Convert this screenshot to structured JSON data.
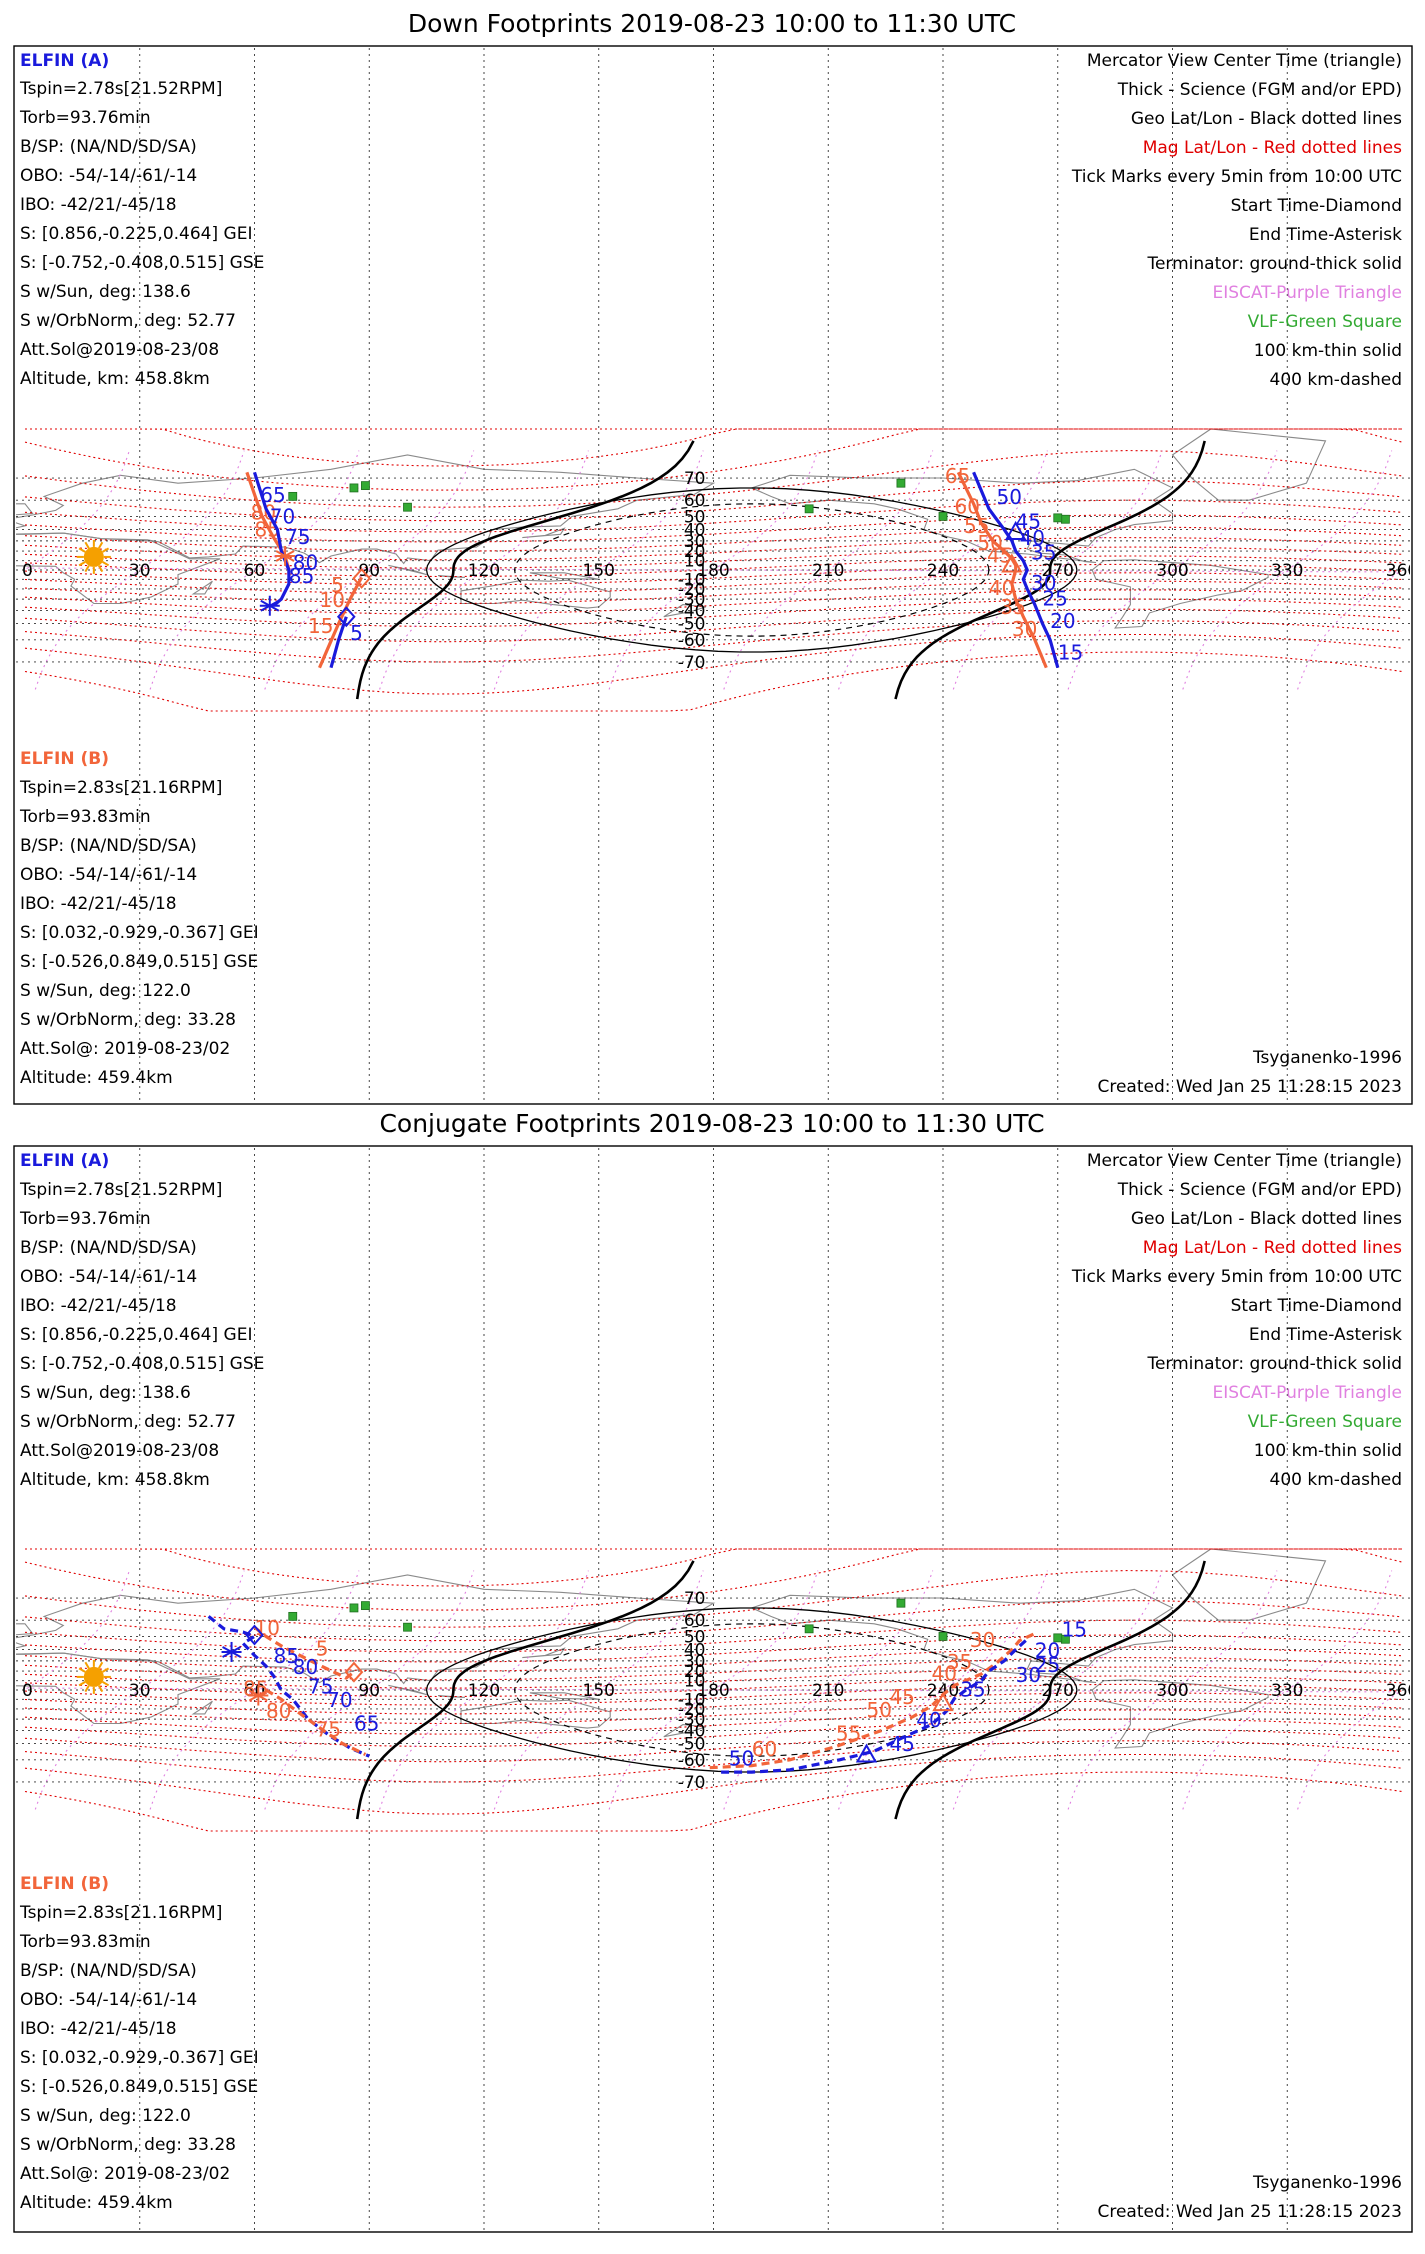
{
  "colors": {
    "elfin_a": "#1a1adc",
    "elfin_b": "#f2653a",
    "mag": "#e00000",
    "geo": "#000000",
    "eiscat": "#e080e0",
    "vlf": "#33aa33",
    "sun": "#f5a000"
  },
  "panels": [
    {
      "title": "Down Footprints 2019-08-23 10:00 to 11:30 UTC",
      "elfin_a": {
        "header": "ELFIN (A)",
        "lines": [
          "Tspin=2.78s[21.52RPM]",
          "Torb=93.76min",
          "B/SP: (NA/ND/SD/SA)",
          "OBO: -54/-14/-61/-14",
          "IBO: -42/21/-45/18",
          "S: [0.856,-0.225,0.464] GEI",
          "S: [-0.752,-0.408,0.515] GSE",
          "S w/Sun, deg: 138.6",
          "S w/OrbNorm, deg: 52.77",
          "Att.Sol@2019-08-23/08",
          "Altitude, km: 458.8km"
        ]
      },
      "elfin_b": {
        "header": "ELFIN (B)",
        "lines": [
          "Tspin=2.83s[21.16RPM]",
          "Torb=93.83min",
          "B/SP: (NA/ND/SD/SA)",
          "OBO: -54/-14/-61/-14",
          "IBO: -42/21/-45/18",
          "S: [0.032,-0.929,-0.367] GEI",
          "S: [-0.526,0.849,0.515] GSE",
          "S w/Sun, deg: 122.0",
          "S w/OrbNorm, deg: 33.28",
          "Att.Sol@: 2019-08-23/02",
          "Altitude: 459.4km"
        ]
      },
      "legend": [
        "Mercator View Center Time (triangle)",
        "Thick - Science (FGM and/or EPD)",
        "Geo Lat/Lon - Black dotted lines",
        "Mag Lat/Lon - Red dotted lines",
        "Tick Marks every 5min from 10:00 UTC",
        "Start Time-Diamond",
        "End Time-Asterisk",
        "Terminator: ground-thick solid",
        "EISCAT-Purple Triangle",
        "VLF-Green Square",
        "100 km-thin solid",
        "400 km-dashed"
      ],
      "model": "Tsyganenko-1996",
      "created": "Created: Wed Jan 25 11:28:15 2023"
    },
    {
      "title": "Conjugate Footprints 2019-08-23 10:00 to 11:30 UTC",
      "elfin_a": {
        "header": "ELFIN (A)",
        "lines": [
          "Tspin=2.78s[21.52RPM]",
          "Torb=93.76min",
          "B/SP: (NA/ND/SD/SA)",
          "OBO: -54/-14/-61/-14",
          "IBO: -42/21/-45/18",
          "S: [0.856,-0.225,0.464] GEI",
          "S: [-0.752,-0.408,0.515] GSE",
          "S w/Sun, deg: 138.6",
          "S w/OrbNorm, deg: 52.77",
          "Att.Sol@2019-08-23/08",
          "Altitude, km: 458.8km"
        ]
      },
      "elfin_b": {
        "header": "ELFIN (B)",
        "lines": [
          "Tspin=2.83s[21.16RPM]",
          "Torb=93.83min",
          "B/SP: (NA/ND/SD/SA)",
          "OBO: -54/-14/-61/-14",
          "IBO: -42/21/-45/18",
          "S: [0.032,-0.929,-0.367] GEI",
          "S: [-0.526,0.849,0.515] GSE",
          "S w/Sun, deg: 122.0",
          "S w/OrbNorm, deg: 33.28",
          "Att.Sol@: 2019-08-23/02",
          "Altitude: 459.4km"
        ]
      },
      "legend": [
        "Mercator View Center Time (triangle)",
        "Thick - Science (FGM and/or EPD)",
        "Geo Lat/Lon - Black dotted lines",
        "Mag Lat/Lon - Red dotted lines",
        "Tick Marks every 5min from 10:00 UTC",
        "Start Time-Diamond",
        "End Time-Asterisk",
        "Terminator: ground-thick solid",
        "EISCAT-Purple Triangle",
        "VLF-Green Square",
        "100 km-thin solid",
        "400 km-dashed"
      ],
      "model": "Tsyganenko-1996",
      "created": "Created: Wed Jan 25 11:28:15 2023"
    }
  ],
  "axes": {
    "lon_ticks": [
      "0",
      "30",
      "60",
      "90",
      "120",
      "150",
      "180",
      "210",
      "240",
      "270",
      "300",
      "330",
      "360"
    ],
    "lat_ticks": [
      "70",
      "60",
      "50",
      "40",
      "30",
      "20",
      "10",
      "-10",
      "-20",
      "-30",
      "-40",
      "-50",
      "-60",
      "-70"
    ]
  },
  "tracks": {
    "down": {
      "a1": {
        "pts": [
          [
            60,
            72
          ],
          [
            63,
            55
          ],
          [
            66,
            40
          ],
          [
            67,
            20
          ],
          [
            68,
            10
          ],
          [
            69,
            0
          ],
          [
            69,
            -15
          ],
          [
            67,
            -30
          ],
          [
            65,
            -36
          ]
        ],
        "labels": [
          {
            "t": "65",
            "lon": 61.5,
            "lat": 59
          },
          {
            "t": "70",
            "lon": 64,
            "lat": 45
          },
          {
            "t": "75",
            "lon": 68,
            "lat": 27
          },
          {
            "t": "80",
            "lon": 70,
            "lat": 0.5
          },
          {
            "t": "85",
            "lon": 69,
            "lat": -14
          }
        ]
      },
      "b1": {
        "pts": [
          [
            58,
            72
          ],
          [
            62,
            50
          ],
          [
            65,
            33
          ],
          [
            68,
            15
          ],
          [
            69,
            0
          ],
          [
            69,
            -5
          ]
        ],
        "labels": [
          {
            "t": "80",
            "lon": 59,
            "lat": 48
          },
          {
            "t": "85",
            "lon": 60,
            "lat": 34
          }
        ]
      },
      "b2": {
        "pts": [
          [
            88,
            -8
          ],
          [
            85,
            -30
          ],
          [
            82,
            -50
          ],
          [
            79,
            -65
          ],
          [
            77,
            -72
          ]
        ],
        "labels": [
          {
            "t": "5",
            "lon": 80,
            "lat": -23
          },
          {
            "t": "10",
            "lon": 77,
            "lat": -37
          },
          {
            "t": "15",
            "lon": 74,
            "lat": -56
          }
        ]
      },
      "a2": {
        "pts": [
          [
            84,
            -45
          ],
          [
            82,
            -60
          ],
          [
            80,
            -72
          ]
        ],
        "labels": [
          {
            "t": "5",
            "lon": 85,
            "lat": -60
          }
        ]
      },
      "a3": {
        "pts": [
          [
            248,
            72
          ],
          [
            252,
            55
          ],
          [
            254,
            48
          ],
          [
            256,
            40
          ],
          [
            258,
            30
          ],
          [
            259,
            20
          ],
          [
            261,
            10
          ],
          [
            262,
            0
          ],
          [
            261,
            -10
          ],
          [
            262,
            -20
          ],
          [
            264,
            -35
          ],
          [
            266,
            -50
          ],
          [
            268,
            -60
          ],
          [
            270,
            -72
          ]
        ],
        "labels": [
          {
            "t": "50",
            "lon": 254,
            "lat": 58
          },
          {
            "t": "45",
            "lon": 259,
            "lat": 41
          },
          {
            "t": "40",
            "lon": 260,
            "lat": 26
          },
          {
            "t": "35",
            "lon": 263,
            "lat": 11.5
          },
          {
            "t": "30",
            "lon": 263,
            "lat": -21
          },
          {
            "t": "25",
            "lon": 266,
            "lat": -36
          },
          {
            "t": "20",
            "lon": 268,
            "lat": -53
          },
          {
            "t": "15",
            "lon": 270,
            "lat": -69
          }
        ]
      },
      "b3": {
        "pts": [
          [
            244,
            72
          ],
          [
            248,
            58
          ],
          [
            250,
            45
          ],
          [
            253,
            30
          ],
          [
            256,
            20
          ],
          [
            258,
            12
          ],
          [
            259,
            5
          ],
          [
            259,
            0
          ],
          [
            258,
            -15
          ],
          [
            259,
            -30
          ],
          [
            261,
            -45
          ],
          [
            264,
            -60
          ],
          [
            267,
            -72
          ]
        ],
        "labels": [
          {
            "t": "65",
            "lon": 240.5,
            "lat": 68
          },
          {
            "t": "60",
            "lon": 243,
            "lat": 52
          },
          {
            "t": "55",
            "lon": 245.5,
            "lat": 37
          },
          {
            "t": "50",
            "lon": 249,
            "lat": 21
          },
          {
            "t": "45",
            "lon": 251.5,
            "lat": 8
          },
          {
            "t": "40",
            "lon": 252,
            "lat": -26
          },
          {
            "t": "35",
            "lon": 255,
            "lat": -43
          },
          {
            "t": "30",
            "lon": 258,
            "lat": -58
          }
        ]
      },
      "markers": [
        {
          "kind": "triangle",
          "track": "a",
          "lon": 259,
          "lat": 38
        },
        {
          "kind": "triangle",
          "track": "b",
          "lon": 258,
          "lat": 6
        },
        {
          "kind": "diamond",
          "track": "b",
          "lon": 88,
          "lat": -9
        },
        {
          "kind": "diamond",
          "track": "a",
          "lon": 84,
          "lat": -45
        },
        {
          "kind": "asterisk",
          "track": "a",
          "lon": 64,
          "lat": -36
        },
        {
          "kind": "asterisk",
          "track": "b",
          "lon": 68,
          "lat": 15
        }
      ]
    },
    "conj": {
      "a1": {
        "pts": [
          [
            48,
            62
          ],
          [
            52,
            55
          ],
          [
            57,
            53
          ],
          [
            60,
            50
          ],
          [
            57,
            45
          ],
          [
            60,
            35
          ],
          [
            63,
            25
          ],
          [
            65,
            15
          ],
          [
            67,
            0
          ],
          [
            70,
            -10
          ],
          [
            74,
            -30
          ],
          [
            80,
            -45
          ],
          [
            85,
            -53
          ],
          [
            90,
            -58
          ]
        ],
        "labels": [
          {
            "t": "85",
            "lon": 65,
            "lat": 28
          },
          {
            "t": "80",
            "lon": 70,
            "lat": 17
          },
          {
            "t": "75",
            "lon": 74,
            "lat": -4
          },
          {
            "t": "70",
            "lon": 79,
            "lat": -18
          },
          {
            "t": "65",
            "lon": 86,
            "lat": -40
          }
        ]
      },
      "b1": {
        "pts": [
          [
            60,
            56
          ],
          [
            63,
            50
          ],
          [
            67,
            43
          ],
          [
            73,
            33
          ],
          [
            78,
            24
          ],
          [
            84,
            13
          ],
          [
            86,
            19
          ]
        ],
        "labels": [
          {
            "t": "10",
            "lon": 60,
            "lat": 51
          },
          {
            "t": "5",
            "lon": 76,
            "lat": 35
          }
        ]
      },
      "b2": {
        "pts": [
          [
            63,
            0
          ],
          [
            67,
            -10
          ],
          [
            72,
            -25
          ],
          [
            78,
            -40
          ],
          [
            83,
            -50
          ],
          [
            89,
            -57
          ]
        ],
        "labels": [
          {
            "t": "85",
            "lon": 57,
            "lat": -6
          },
          {
            "t": "80",
            "lon": 63,
            "lat": -29
          },
          {
            "t": "75",
            "lon": 76,
            "lat": -45
          }
        ]
      },
      "a2": {
        "pts": [
          [
            182,
            -66
          ],
          [
            190,
            -66
          ],
          [
            200,
            -65
          ],
          [
            213,
            -60
          ],
          [
            222,
            -55
          ],
          [
            230,
            -45
          ],
          [
            237,
            -35
          ],
          [
            241,
            -22
          ],
          [
            243,
            -9
          ],
          [
            246,
            0
          ],
          [
            250,
            10
          ],
          [
            252,
            20
          ],
          [
            256,
            30
          ],
          [
            259,
            40
          ],
          [
            262,
            48
          ]
        ],
        "labels": [
          {
            "t": "50",
            "lon": 184,
            "lat": -63
          },
          {
            "t": "45",
            "lon": 226,
            "lat": -55
          },
          {
            "t": "40",
            "lon": 233,
            "lat": -37
          },
          {
            "t": "35",
            "lon": 244.5,
            "lat": -7
          },
          {
            "t": "30",
            "lon": 259,
            "lat": 8.5
          },
          {
            "t": "25",
            "lon": 264,
            "lat": 19
          },
          {
            "t": "20",
            "lon": 264,
            "lat": 33
          },
          {
            "t": "15",
            "lon": 271,
            "lat": 50
          }
        ]
      },
      "b2s": {
        "pts": [
          [
            179,
            -64
          ],
          [
            190,
            -63
          ],
          [
            200,
            -60
          ],
          [
            212,
            -52
          ],
          [
            224,
            -40
          ],
          [
            232,
            -28
          ],
          [
            237,
            -17
          ],
          [
            240,
            -5
          ],
          [
            243,
            5
          ],
          [
            250,
            17
          ],
          [
            254,
            28
          ],
          [
            258,
            40
          ],
          [
            260,
            47
          ],
          [
            264,
            52
          ]
        ],
        "labels": [
          {
            "t": "60",
            "lon": 190,
            "lat": -58
          },
          {
            "t": "55",
            "lon": 212,
            "lat": -48
          },
          {
            "t": "50",
            "lon": 220,
            "lat": -28
          },
          {
            "t": "45",
            "lon": 226,
            "lat": -15
          },
          {
            "t": "40",
            "lon": 237,
            "lat": 10
          },
          {
            "t": "35",
            "lon": 241,
            "lat": 22
          },
          {
            "t": "30",
            "lon": 247,
            "lat": 42
          }
        ]
      },
      "markers": [
        {
          "kind": "triangle",
          "track": "a",
          "lon": 220,
          "lat": -57
        },
        {
          "kind": "triangle",
          "track": "b",
          "lon": 240,
          "lat": -14
        },
        {
          "kind": "diamond",
          "track": "a",
          "lon": 60,
          "lat": 51
        },
        {
          "kind": "diamond",
          "track": "b",
          "lon": 86,
          "lat": 19
        },
        {
          "kind": "asterisk",
          "track": "a",
          "lon": 54,
          "lat": 38
        },
        {
          "kind": "asterisk",
          "track": "b",
          "lon": 61,
          "lat": -6
        }
      ]
    },
    "sites": [
      [
        70,
        62
      ],
      [
        100,
        56
      ],
      [
        86,
        66
      ],
      [
        89,
        67
      ],
      [
        205,
        55
      ],
      [
        240,
        50
      ],
      [
        272,
        48
      ],
      [
        270,
        49
      ],
      [
        229,
        68
      ]
    ]
  }
}
